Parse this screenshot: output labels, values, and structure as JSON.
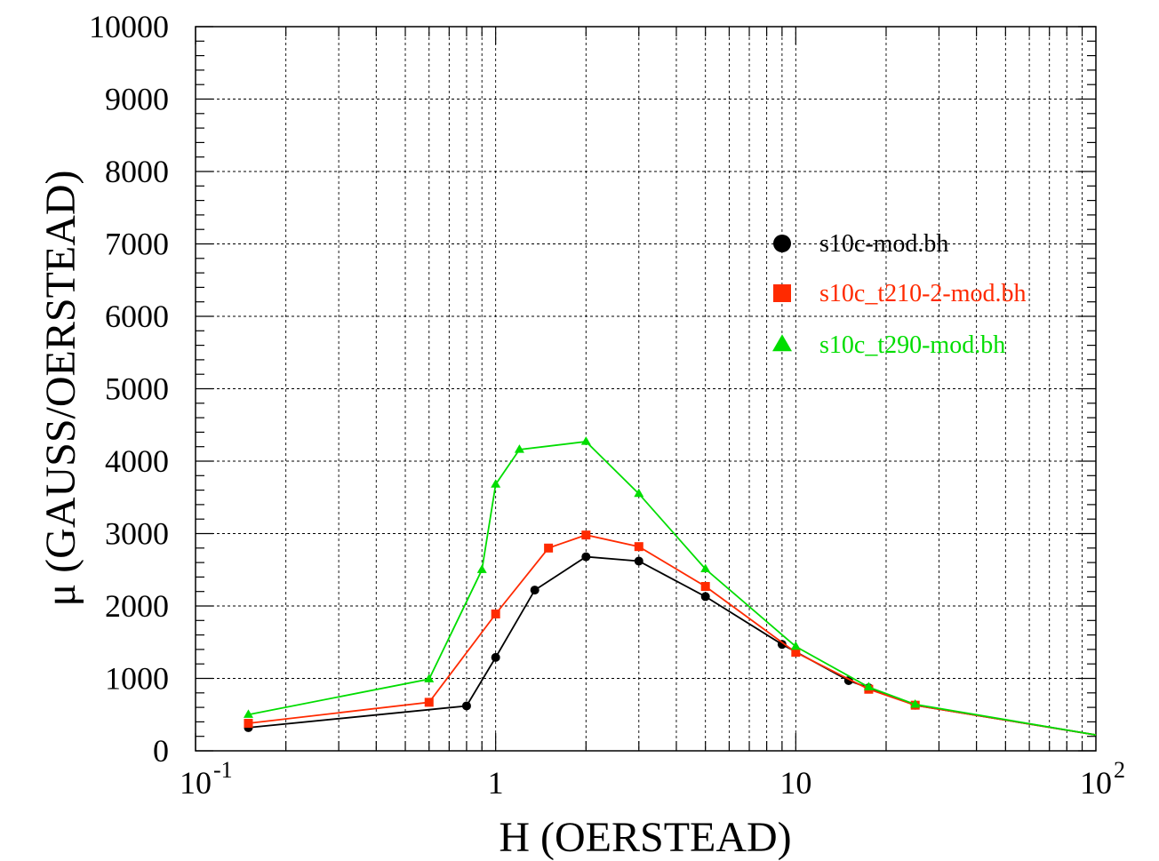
{
  "chart_data": {
    "type": "line",
    "xscale": "log",
    "xlim": [
      0.1,
      100
    ],
    "ylim": [
      0,
      10000
    ],
    "xlabel": "H (OERSTEAD)",
    "ylabel": "μ (GAUSS/OERSTEAD)",
    "grid": true,
    "legend_position": "right-middle",
    "y_ticks": [
      "0",
      "1000",
      "2000",
      "3000",
      "4000",
      "5000",
      "6000",
      "7000",
      "8000",
      "9000",
      "10000"
    ],
    "x_ticks": [
      {
        "base": "10",
        "exp": "-1"
      },
      {
        "base": "1",
        "exp": ""
      },
      {
        "base": "10",
        "exp": ""
      },
      {
        "base": "10",
        "exp": "2"
      }
    ],
    "series": [
      {
        "name": "s10c-mod.bh",
        "color": "#000000",
        "marker": "circle",
        "points": [
          [
            0.15,
            320
          ],
          [
            0.8,
            620
          ],
          [
            1.0,
            1290
          ],
          [
            1.35,
            2220
          ],
          [
            2.0,
            2680
          ],
          [
            3.0,
            2620
          ],
          [
            5.0,
            2130
          ],
          [
            9.0,
            1470
          ],
          [
            15.0,
            970
          ],
          [
            17.5,
            870
          ],
          [
            25.0,
            630
          ],
          [
            100,
            220
          ]
        ]
      },
      {
        "name": "s10c_t210-2-mod.bh",
        "color": "#ff2a00",
        "marker": "square",
        "points": [
          [
            0.15,
            380
          ],
          [
            0.6,
            670
          ],
          [
            1.0,
            1890
          ],
          [
            1.5,
            2800
          ],
          [
            2.0,
            2980
          ],
          [
            3.0,
            2820
          ],
          [
            5.0,
            2270
          ],
          [
            10.0,
            1360
          ],
          [
            17.5,
            850
          ],
          [
            25.0,
            630
          ],
          [
            100,
            220
          ]
        ]
      },
      {
        "name": "s10c_t290-mod.bh",
        "color": "#00dd00",
        "marker": "triangle",
        "points": [
          [
            0.15,
            500
          ],
          [
            0.6,
            990
          ],
          [
            0.9,
            2500
          ],
          [
            1.0,
            3680
          ],
          [
            1.2,
            4160
          ],
          [
            2.0,
            4270
          ],
          [
            3.0,
            3550
          ],
          [
            5.0,
            2510
          ],
          [
            10.0,
            1440
          ],
          [
            17.5,
            880
          ],
          [
            25.0,
            640
          ],
          [
            100,
            220
          ]
        ]
      }
    ]
  }
}
